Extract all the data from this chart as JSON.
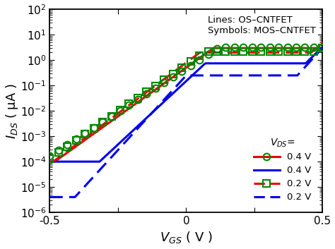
{
  "xlabel": "$V_{GS}$ ( V )",
  "ylabel": "$I_{DS}$ ( μA )",
  "xlim": [
    -0.5,
    0.5
  ],
  "ylim_log": [
    -6,
    2
  ],
  "annotation_line1": "Lines: OS–CNTFET",
  "annotation_line2": "Symbols: MOS–CNTFET",
  "legend_title": "$V_{DS}$=",
  "red_color": "#EE0000",
  "blue_color": "#0000EE",
  "green_color": "#008800",
  "background_color": "#FFFFFF"
}
